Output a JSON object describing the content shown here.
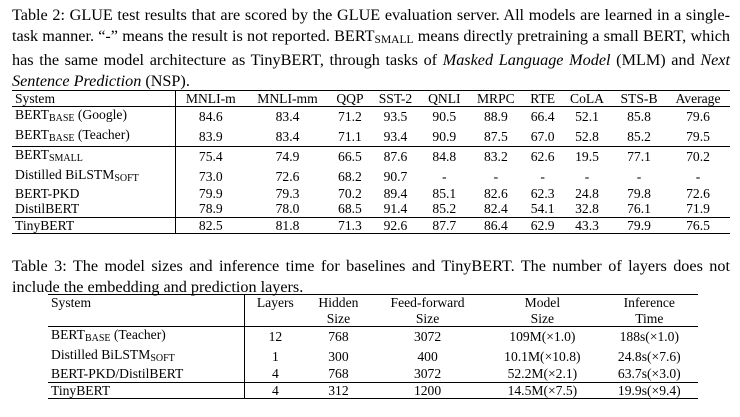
{
  "table2": {
    "caption_segments": [
      {
        "t": "Table 2: GLUE test results that are scored by the GLUE evaluation server. All models are learned in a single-task manner. “-” means the result is not reported. BERT",
        "s": ""
      },
      {
        "t": "SMALL",
        "s": "sub"
      },
      {
        "t": " means directly pretraining a small BERT, which has the same model architecture as TinyBERT, through tasks of ",
        "s": ""
      },
      {
        "t": "Masked Language Model",
        "s": "it"
      },
      {
        "t": " (MLM) and ",
        "s": ""
      },
      {
        "t": "Next Sentence Prediction",
        "s": "it"
      },
      {
        "t": " (NSP).",
        "s": ""
      }
    ],
    "headers": [
      "System",
      "MNLI-m",
      "MNLI-mm",
      "QQP",
      "SST-2",
      "QNLI",
      "MRPC",
      "RTE",
      "CoLA",
      "STS-B",
      "Average"
    ],
    "groups": [
      [
        {
          "name": "BERT",
          "sub": "BASE",
          "suffix": " (Google)",
          "values": [
            "84.6",
            "83.4",
            "71.2",
            "93.5",
            "90.5",
            "88.9",
            "66.4",
            "52.1",
            "85.8",
            "79.6"
          ]
        },
        {
          "name": "BERT",
          "sub": "BASE",
          "suffix": " (Teacher)",
          "values": [
            "83.9",
            "83.4",
            "71.1",
            "93.4",
            "90.9",
            "87.5",
            "67.0",
            "52.8",
            "85.2",
            "79.5"
          ]
        }
      ],
      [
        {
          "name": "BERT",
          "sub": "SMALL",
          "suffix": "",
          "values": [
            "75.4",
            "74.9",
            "66.5",
            "87.6",
            "84.8",
            "83.2",
            "62.6",
            "19.5",
            "77.1",
            "70.2"
          ]
        },
        {
          "name": "Distilled BiLSTM",
          "sub": "SOFT",
          "suffix": "",
          "values": [
            "73.0",
            "72.6",
            "68.2",
            "90.7",
            "-",
            "-",
            "-",
            "-",
            "-",
            "-"
          ]
        },
        {
          "name": "BERT-PKD",
          "sub": "",
          "suffix": "",
          "values": [
            "79.9",
            "79.3",
            "70.2",
            "89.4",
            "85.1",
            "82.6",
            "62.3",
            "24.8",
            "79.8",
            "72.6"
          ]
        },
        {
          "name": "DistilBERT",
          "sub": "",
          "suffix": "",
          "values": [
            "78.9",
            "78.0",
            "68.5",
            "91.4",
            "85.2",
            "82.4",
            "54.1",
            "32.8",
            "76.1",
            "71.9"
          ]
        }
      ],
      [
        {
          "name": "TinyBERT",
          "sub": "",
          "suffix": "",
          "values": [
            "82.5",
            "81.8",
            "71.3",
            "92.6",
            "87.7",
            "86.4",
            "62.9",
            "43.3",
            "79.9",
            "76.5"
          ]
        }
      ]
    ]
  },
  "table3": {
    "caption": "Table 3: The model sizes and inference time for baselines and TinyBERT. The number of layers does not include the embedding and prediction layers.",
    "headers_row1": [
      "System",
      "Layers",
      "Hidden",
      "Feed-forward",
      "Model",
      "Inference"
    ],
    "headers_row2": [
      "",
      "",
      "Size",
      "Size",
      "Size",
      "Time"
    ],
    "rows": [
      {
        "name": "BERT",
        "sub": "BASE",
        "suffix": " (Teacher)",
        "values": [
          "12",
          "768",
          "3072",
          "109M(×1.0)",
          "188s(×1.0)"
        ]
      },
      {
        "name": "Distilled BiLSTM",
        "sub": "SOFT",
        "suffix": "",
        "values": [
          "1",
          "300",
          "400",
          "10.1M(×10.8)",
          "24.8s(×7.6)"
        ]
      },
      {
        "name": "BERT-PKD/DistilBERT",
        "sub": "",
        "suffix": "",
        "values": [
          "4",
          "768",
          "3072",
          "52.2M(×2.1)",
          "63.7s(×3.0)"
        ]
      },
      {
        "name": "TinyBERT",
        "sub": "",
        "suffix": "",
        "values": [
          "4",
          "312",
          "1200",
          "14.5M(×7.5)",
          "19.9s(×9.4)"
        ]
      }
    ]
  }
}
